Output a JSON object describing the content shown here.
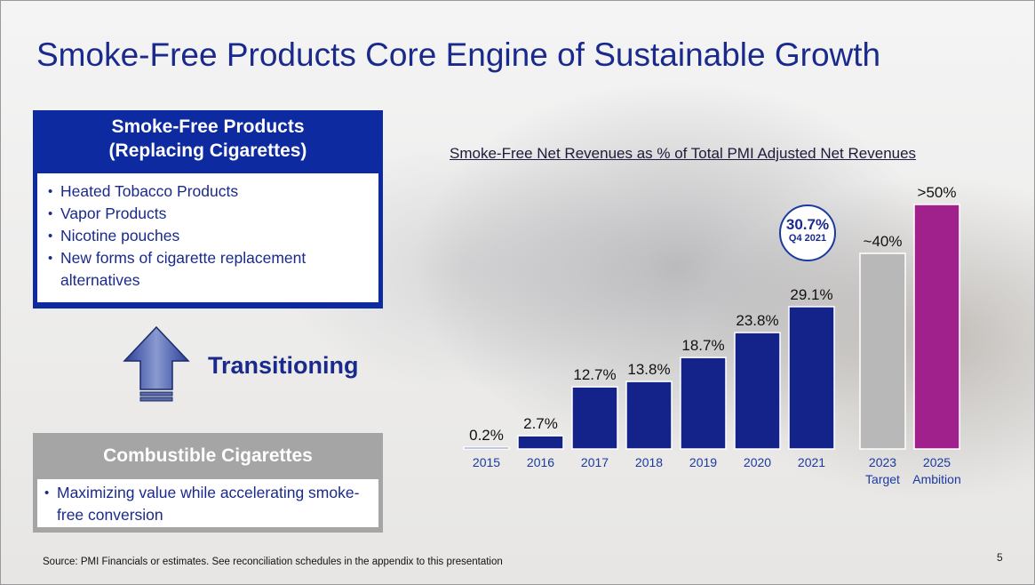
{
  "title": "Smoke-Free Products Core Engine of Sustainable Growth",
  "smoke_free_box": {
    "header_line1": "Smoke-Free Products",
    "header_line2": "(Replacing Cigarettes)",
    "items": [
      "Heated Tobacco Products",
      "Vapor Products",
      "Nicotine pouches",
      "New forms of cigarette replacement alternatives"
    ]
  },
  "transition_label": "Transitioning",
  "combustible_box": {
    "header": "Combustible Cigarettes",
    "items": [
      "Maximizing value while accelerating smoke-free conversion"
    ]
  },
  "badge": {
    "value": "30.7%",
    "sub": "Q4 2021"
  },
  "chart_data": {
    "type": "bar",
    "title": "Smoke-Free Net Revenues as % of Total PMI Adjusted Net Revenues",
    "xlabel": "",
    "ylabel": "",
    "ylim": [
      0,
      52
    ],
    "grid": false,
    "categories": [
      "2015",
      "2016",
      "2017",
      "2018",
      "2019",
      "2020",
      "2021",
      "2023",
      "2025"
    ],
    "category_sublabels": [
      "",
      "",
      "",
      "",
      "",
      "",
      "",
      "Target",
      "Ambition"
    ],
    "values": [
      0.2,
      2.7,
      12.7,
      13.8,
      18.7,
      23.8,
      29.1,
      40,
      50
    ],
    "data_labels": [
      "0.2%",
      "2.7%",
      "12.7%",
      "13.8%",
      "18.7%",
      "23.8%",
      "29.1%",
      "~40%",
      ">50%"
    ],
    "bar_colors": [
      "#14238a",
      "#14238a",
      "#14238a",
      "#14238a",
      "#14238a",
      "#14238a",
      "#14238a",
      "#b8b8b8",
      "#a0208c"
    ]
  },
  "footer": {
    "source": "Source: PMI Financials or estimates. See reconciliation schedules in the appendix to this presentation",
    "page_number": "5"
  }
}
